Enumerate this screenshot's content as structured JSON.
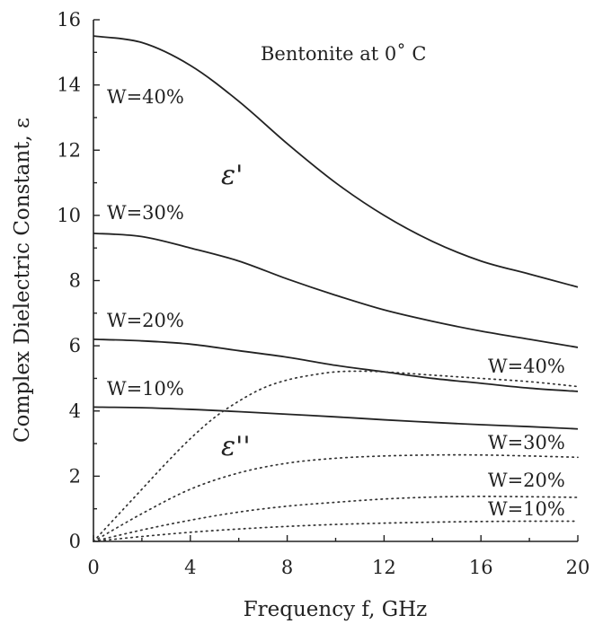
{
  "chart_data": {
    "type": "line",
    "title": "Bentonite at 0˚ C",
    "xlabel": "Frequency f, GHz",
    "ylabel": "Complex Dielectric Constant, ε",
    "xlim": [
      0,
      20
    ],
    "ylim": [
      0,
      16
    ],
    "x_ticks": [
      0,
      4,
      8,
      12,
      16,
      20
    ],
    "y_ticks": [
      0,
      2,
      4,
      6,
      8,
      10,
      12,
      14,
      16
    ],
    "x_tick_labels": [
      "0",
      "4",
      "8",
      "12",
      "16",
      "20"
    ],
    "y_tick_labels": [
      "0",
      "2",
      "4",
      "6",
      "8",
      "10",
      "12",
      "14",
      "16"
    ],
    "grid": false,
    "group_labels": {
      "real": "ε'",
      "imag": "ε''"
    },
    "series": [
      {
        "name": "W=40%",
        "part": "real",
        "style": "solid",
        "x": [
          0,
          2,
          4,
          6,
          8,
          10,
          12,
          14,
          16,
          18,
          20
        ],
        "y": [
          15.5,
          15.3,
          14.6,
          13.5,
          12.2,
          11.0,
          10.0,
          9.2,
          8.6,
          8.2,
          7.8
        ]
      },
      {
        "name": "W=30%",
        "part": "real",
        "style": "solid",
        "x": [
          0,
          2,
          4,
          6,
          8,
          10,
          12,
          14,
          16,
          18,
          20
        ],
        "y": [
          9.45,
          9.35,
          9.0,
          8.6,
          8.05,
          7.55,
          7.1,
          6.75,
          6.45,
          6.2,
          5.95
        ]
      },
      {
        "name": "W=20%",
        "part": "real",
        "style": "solid",
        "x": [
          0,
          2,
          4,
          6,
          8,
          10,
          12,
          14,
          16,
          18,
          20
        ],
        "y": [
          6.2,
          6.15,
          6.05,
          5.85,
          5.65,
          5.4,
          5.2,
          5.0,
          4.85,
          4.7,
          4.6
        ]
      },
      {
        "name": "W=10%",
        "part": "real",
        "style": "solid",
        "x": [
          0,
          2,
          4,
          6,
          8,
          10,
          12,
          14,
          16,
          18,
          20
        ],
        "y": [
          4.12,
          4.1,
          4.05,
          3.98,
          3.9,
          3.82,
          3.73,
          3.65,
          3.58,
          3.52,
          3.45
        ]
      },
      {
        "name": "W=40%",
        "part": "imag",
        "style": "dotted",
        "x": [
          0,
          1,
          2,
          3,
          4,
          5,
          6,
          7,
          8,
          9,
          10,
          11,
          12,
          14,
          16,
          18,
          20
        ],
        "y": [
          0.0,
          0.8,
          1.6,
          2.4,
          3.15,
          3.8,
          4.3,
          4.7,
          4.95,
          5.1,
          5.2,
          5.22,
          5.2,
          5.1,
          5.0,
          4.9,
          4.75
        ]
      },
      {
        "name": "W=30%",
        "part": "imag",
        "style": "dotted",
        "x": [
          0,
          2,
          4,
          6,
          8,
          10,
          12,
          14,
          16,
          18,
          20
        ],
        "y": [
          0.0,
          0.85,
          1.6,
          2.1,
          2.4,
          2.55,
          2.62,
          2.65,
          2.65,
          2.62,
          2.58
        ]
      },
      {
        "name": "W=20%",
        "part": "imag",
        "style": "dotted",
        "x": [
          0,
          2,
          4,
          6,
          8,
          10,
          12,
          14,
          16,
          18,
          20
        ],
        "y": [
          0.0,
          0.35,
          0.65,
          0.9,
          1.08,
          1.2,
          1.3,
          1.36,
          1.38,
          1.37,
          1.35
        ]
      },
      {
        "name": "W=10%",
        "part": "imag",
        "style": "dotted",
        "x": [
          0,
          2,
          4,
          6,
          8,
          10,
          12,
          14,
          16,
          18,
          20
        ],
        "y": [
          0.0,
          0.15,
          0.28,
          0.38,
          0.46,
          0.52,
          0.56,
          0.59,
          0.61,
          0.62,
          0.62
        ]
      }
    ]
  }
}
